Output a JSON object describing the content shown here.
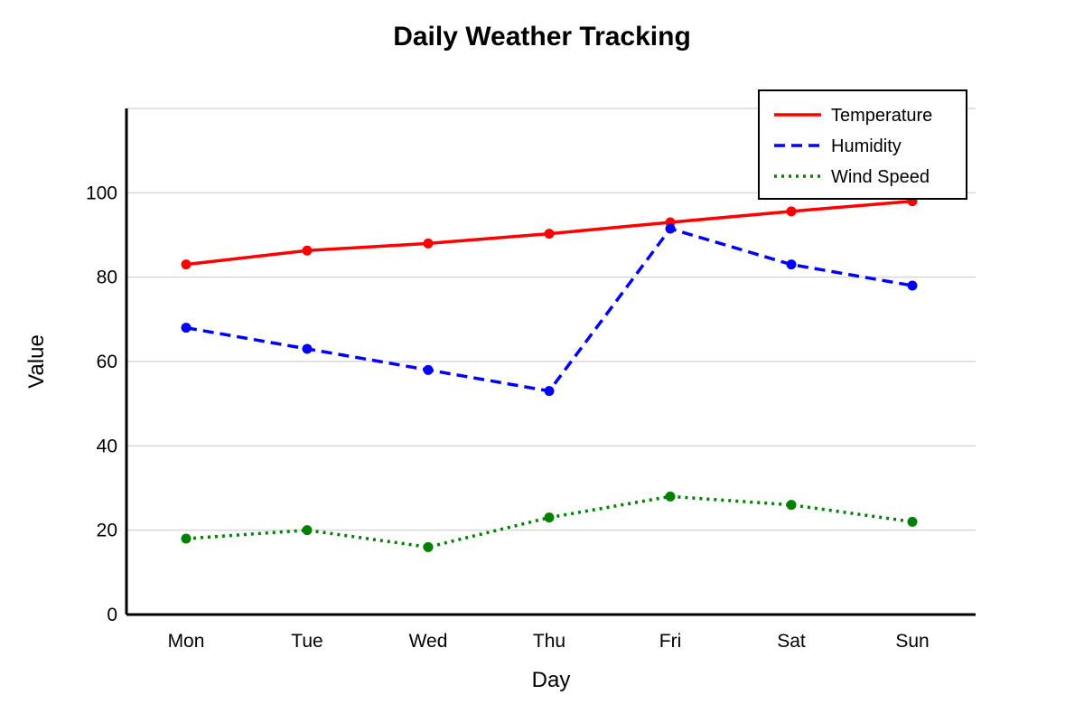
{
  "chart_data": {
    "type": "line",
    "title": "Daily Weather Tracking",
    "xlabel": "Day",
    "ylabel": "Value",
    "categories": [
      "Mon",
      "Tue",
      "Wed",
      "Thu",
      "Fri",
      "Sat",
      "Sun"
    ],
    "ylim": [
      0,
      120
    ],
    "yticks": [
      "0",
      "20",
      "40",
      "60",
      "80",
      "100"
    ],
    "grid": true,
    "legend_position": "top-right",
    "series": [
      {
        "name": "Temperature",
        "values": [
          83,
          86.3,
          88,
          90.3,
          93,
          95.6,
          98
        ],
        "color": "#ff0000",
        "dash": "solid"
      },
      {
        "name": "Humidity",
        "values": [
          68,
          63,
          58,
          53,
          91.5,
          83,
          78
        ],
        "color": "#0000ff",
        "dash": "dashed"
      },
      {
        "name": "Wind Speed",
        "values": [
          18,
          20,
          16,
          23,
          28,
          26,
          22
        ],
        "color": "#008000",
        "dash": "dotted"
      }
    ]
  }
}
